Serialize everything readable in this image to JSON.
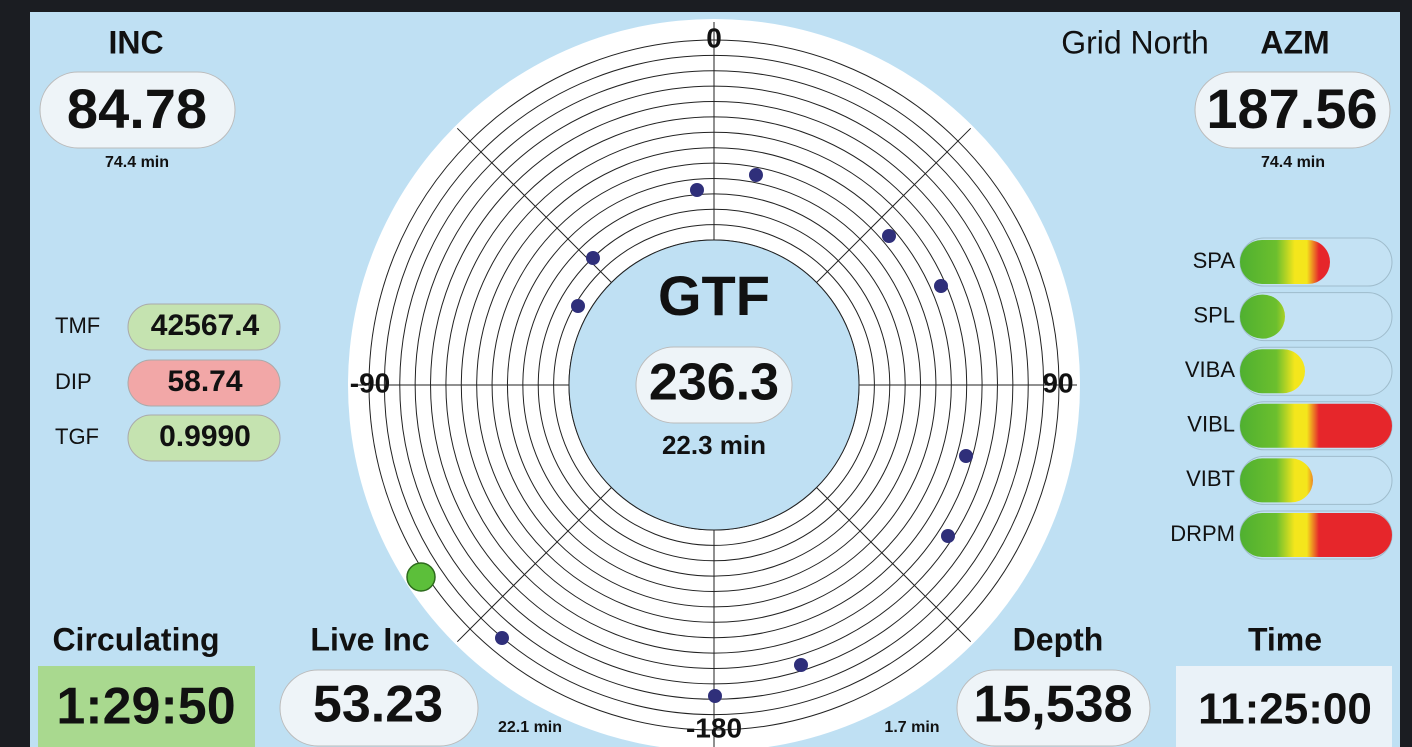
{
  "inc": {
    "label": "INC",
    "value": "84.78",
    "age": "74.4 min"
  },
  "azm": {
    "reference": "Grid North",
    "label": "AZM",
    "value": "187.56",
    "age": "74.4 min"
  },
  "magnetics": [
    {
      "label": "TMF",
      "value": "42567.4"
    },
    {
      "label": "DIP",
      "value": "58.74"
    },
    {
      "label": "TGF",
      "value": "0.9990"
    }
  ],
  "gtf": {
    "label": "GTF",
    "value": "236.3",
    "age": "22.3 min"
  },
  "polar_labels": {
    "top": "0",
    "right": "90",
    "bottom": "-180",
    "left": "-90"
  },
  "gauges": [
    "SPA",
    "SPL",
    "VIBA",
    "VIBL",
    "VIBT",
    "DRPM"
  ],
  "circulating": {
    "label": "Circulating",
    "value": "1:29:50"
  },
  "live_inc": {
    "label": "Live Inc",
    "value": "53.23",
    "age": "22.1 min"
  },
  "depth": {
    "label": "Depth",
    "value": "15,538",
    "age": "1.7 min"
  },
  "time": {
    "label": "Time",
    "value": "11:25:00"
  }
}
